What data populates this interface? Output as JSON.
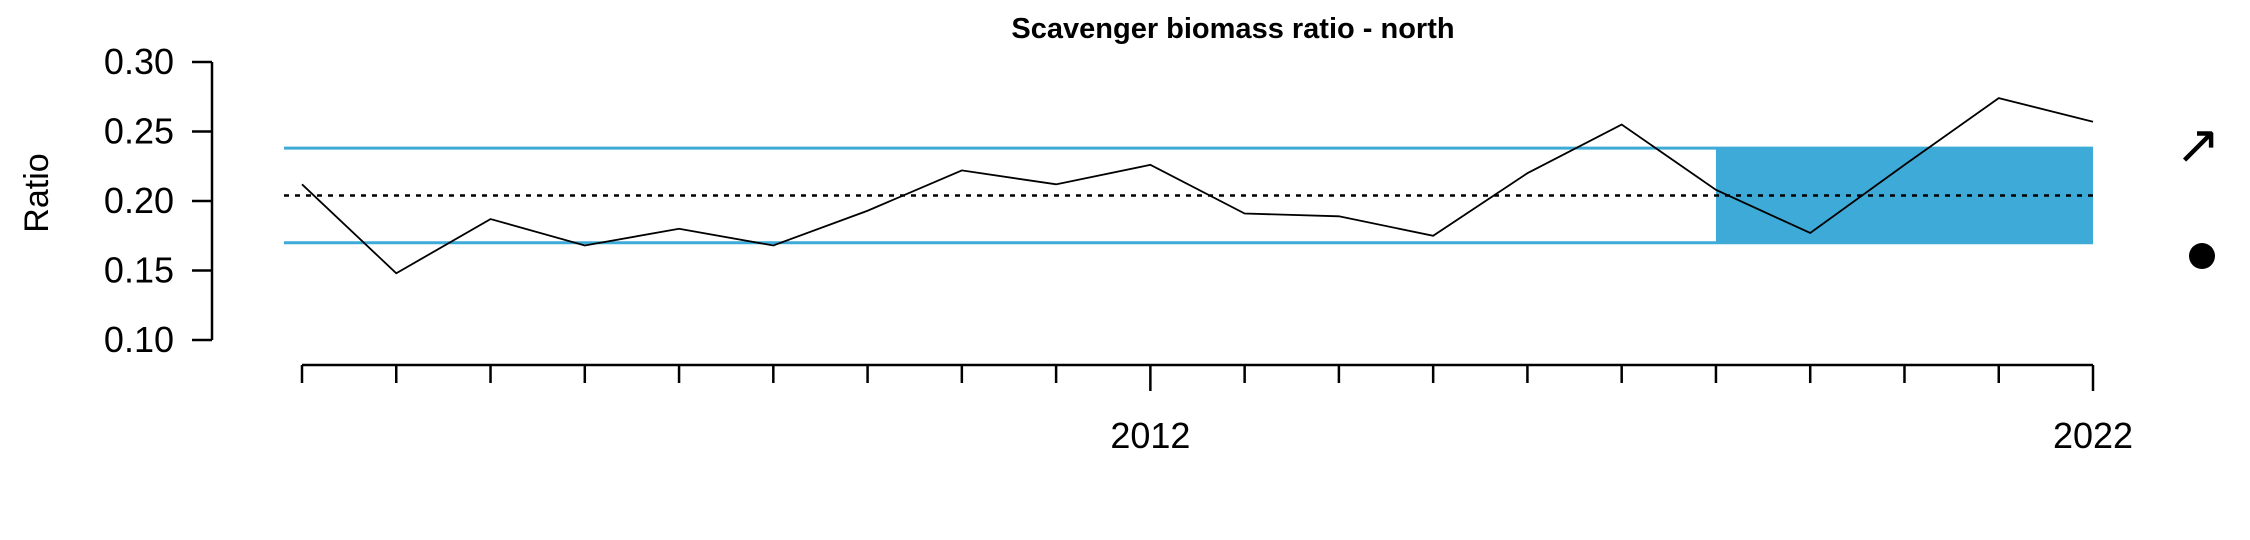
{
  "chart_data": {
    "type": "line",
    "title": "Scavenger biomass ratio - north",
    "xlabel": "",
    "ylabel": "Ratio",
    "xlim": [
      2003,
      2022
    ],
    "ylim": [
      0.1,
      0.3
    ],
    "yticks": [
      0.1,
      0.15,
      0.2,
      0.25,
      0.3
    ],
    "ytick_labels": [
      "0.10",
      "0.15",
      "0.20",
      "0.25",
      "0.30"
    ],
    "xticks_minor": [
      2003,
      2004,
      2005,
      2006,
      2007,
      2008,
      2009,
      2010,
      2011,
      2012,
      2013,
      2014,
      2015,
      2016,
      2017,
      2018,
      2019,
      2020,
      2021,
      2022
    ],
    "xticks_labeled": [
      2012,
      2022
    ],
    "xtick_labels": [
      "2012",
      "2022"
    ],
    "series": [
      {
        "x": [
          2003,
          2004,
          2005,
          2006,
          2007,
          2008,
          2009,
          2010,
          2011,
          2012,
          2013,
          2014,
          2015,
          2016,
          2017,
          2018,
          2019,
          2020,
          2021,
          2022
        ],
        "values": [
          0.212,
          0.148,
          0.187,
          0.168,
          0.18,
          0.168,
          0.193,
          0.222,
          0.212,
          0.226,
          0.191,
          0.189,
          0.175,
          0.22,
          0.255,
          0.208,
          0.177,
          0.226,
          0.274,
          0.257
        ]
      }
    ],
    "mean_line": 0.204,
    "sd_band": [
      0.17,
      0.238
    ],
    "highlight_period": [
      2018,
      2022
    ],
    "colors": {
      "band": "#3eaad7",
      "series": "#000000",
      "mean": "#000000"
    },
    "trend_symbol": "↗",
    "mean_symbol": "●",
    "grid": false,
    "legend": "none"
  }
}
